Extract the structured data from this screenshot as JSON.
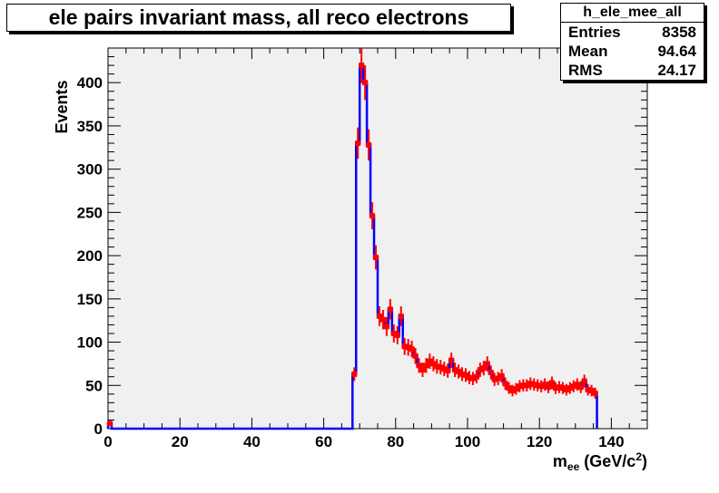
{
  "title": "ele pairs invariant mass, all reco electrons",
  "stats": {
    "name": "h_ele_mee_all",
    "rows": [
      {
        "label": "Entries",
        "value": "8358"
      },
      {
        "label": "Mean",
        "value": "94.64"
      },
      {
        "label": "RMS",
        "value": "24.17"
      }
    ]
  },
  "colors": {
    "histogram": "#0000ff",
    "markers": "#ff0000",
    "frame_bg": "#f0f0f0"
  },
  "chart_data": {
    "type": "histogram",
    "title": "ele pairs invariant mass, all reco electrons",
    "ylabel": "Events",
    "xlabel_main": "m",
    "xlabel_sub": "ee",
    "xlabel_unit": " (GeV/c",
    "xlabel_sup": "2",
    "xlabel_close": ")",
    "xlim": [
      0,
      150
    ],
    "ylim": [
      0,
      440
    ],
    "x_ticks": [
      0,
      20,
      40,
      60,
      80,
      100,
      120,
      140
    ],
    "y_ticks": [
      0,
      50,
      100,
      150,
      200,
      250,
      300,
      350,
      400
    ],
    "bin_width": 1,
    "values": [
      6,
      0,
      0,
      0,
      0,
      0,
      0,
      0,
      0,
      0,
      0,
      0,
      0,
      0,
      0,
      0,
      0,
      0,
      0,
      0,
      0,
      0,
      0,
      0,
      0,
      0,
      0,
      0,
      0,
      0,
      0,
      0,
      0,
      0,
      0,
      0,
      0,
      0,
      0,
      0,
      0,
      0,
      0,
      0,
      0,
      0,
      0,
      0,
      0,
      0,
      0,
      0,
      0,
      0,
      0,
      0,
      0,
      0,
      0,
      0,
      0,
      0,
      0,
      0,
      0,
      0,
      0,
      0,
      63,
      330,
      420,
      400,
      328,
      246,
      198,
      130,
      126,
      118,
      138,
      110,
      108,
      130,
      95,
      94,
      92,
      84,
      73,
      68,
      73,
      78,
      75,
      72,
      71,
      69,
      67,
      79,
      68,
      66,
      63,
      62,
      59,
      58,
      60,
      68,
      70,
      75,
      65,
      57,
      58,
      61,
      52,
      47,
      44,
      46,
      49,
      50,
      50,
      52,
      51,
      50,
      49,
      51,
      48,
      53,
      47,
      48,
      47,
      45,
      47,
      49,
      51,
      48,
      55,
      45,
      44,
      41
    ]
  }
}
